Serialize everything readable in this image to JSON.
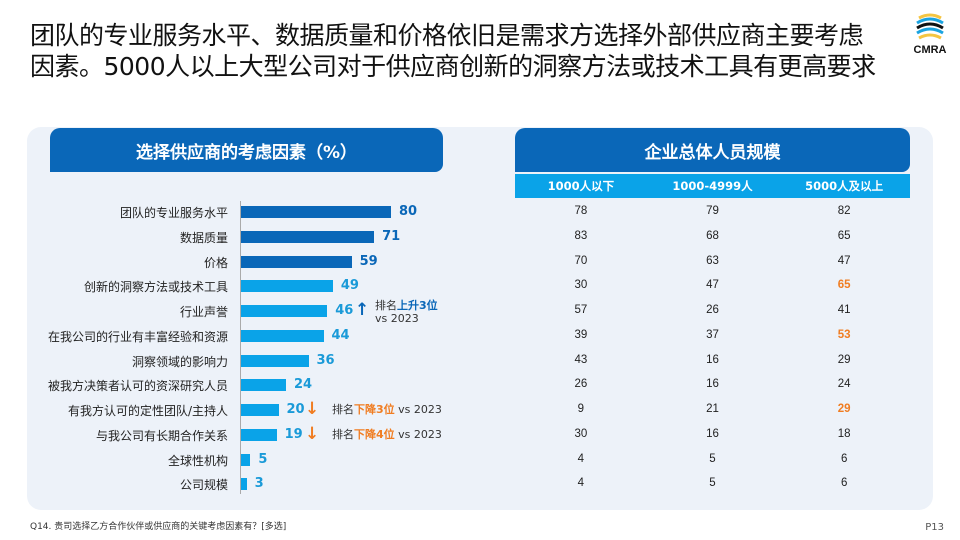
{
  "title": "团队的专业服务水平、数据质量和价格依旧是需求方选择外部供应商主要考虑因素。5000人以上大型公司对于供应商创新的洞察方法或技术工具有更高要求",
  "logo": "CMRA",
  "colors": {
    "dark_bar": "#0a67b8",
    "light_bar": "#0aa3e8",
    "highlight": "#f07d22",
    "header": "#0a67b8"
  },
  "chart_data": {
    "type": "bar",
    "orientation": "horizontal",
    "title": "选择供应商的考虑因素（%）",
    "categories": [
      "团队的专业服务水平",
      "数据质量",
      "价格",
      "创新的洞察方法或技术工具",
      "行业声誉",
      "在我公司的行业有丰富经验和资源",
      "洞察领域的影响力",
      "被我方决策者认可的资深研究人员",
      "有我方认可的定性团队/主持人",
      "与我公司有长期合作关系",
      "全球性机构",
      "公司规模"
    ],
    "values": [
      80,
      71,
      59,
      49,
      46,
      44,
      36,
      24,
      20,
      19,
      5,
      3
    ],
    "top_highlighted_count": 3
  },
  "annotations": [
    {
      "row": 4,
      "direction": "up",
      "prefix": "排名",
      "change": "上升3位",
      "suffix": "vs 2023"
    },
    {
      "row": 8,
      "direction": "down",
      "prefix": "排名",
      "change": "下降3位",
      "suffix": "vs 2023"
    },
    {
      "row": 9,
      "direction": "down",
      "prefix": "排名",
      "change": "下降4位",
      "suffix": "vs 2023"
    }
  ],
  "table": {
    "title": "企业总体人员规模",
    "columns": [
      "1000人以下",
      "1000-4999人",
      "5000人及以上"
    ],
    "rows": [
      [
        78,
        79,
        82
      ],
      [
        83,
        68,
        65
      ],
      [
        70,
        63,
        47
      ],
      [
        30,
        47,
        65
      ],
      [
        57,
        26,
        41
      ],
      [
        39,
        37,
        53
      ],
      [
        43,
        16,
        29
      ],
      [
        26,
        16,
        24
      ],
      [
        9,
        21,
        29
      ],
      [
        30,
        16,
        18
      ],
      [
        4,
        5,
        6
      ],
      [
        4,
        5,
        6
      ]
    ],
    "highlighted": [
      [
        3,
        2
      ],
      [
        5,
        2
      ],
      [
        8,
        2
      ]
    ]
  },
  "footnote": "Q14. 贵司选择乙方合作伙伴或供应商的关键考虑因素有？[多选]",
  "page": "P13"
}
